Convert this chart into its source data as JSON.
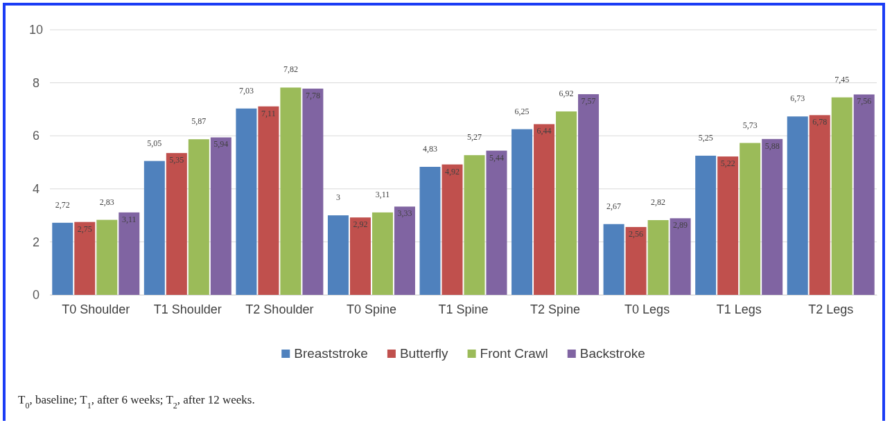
{
  "chart_data": {
    "type": "bar",
    "categories": [
      "T0 Shoulder",
      "T1 Shoulder",
      "T2 Shoulder",
      "T0 Spine",
      "T1 Spine",
      "T2 Spine",
      "T0 Legs",
      "T1 Legs",
      "T2 Legs"
    ],
    "series": [
      {
        "name": "Breaststroke",
        "color": "#4f81bd",
        "values": [
          2.72,
          5.05,
          7.03,
          3,
          4.83,
          6.25,
          2.67,
          5.25,
          6.73
        ],
        "value_labels": [
          "2,72",
          "5,05",
          "7,03",
          "3",
          "4,83",
          "6,25",
          "2,67",
          "5,25",
          "6,73"
        ]
      },
      {
        "name": "Butterfly",
        "color": "#c0504d",
        "values": [
          2.75,
          5.35,
          7.11,
          2.92,
          4.92,
          6.44,
          2.56,
          5.22,
          6.78
        ],
        "value_labels": [
          "2,75",
          "5,35",
          "7,11",
          "2,92",
          "4,92",
          "6,44",
          "2,56",
          "5,22",
          "6,78"
        ]
      },
      {
        "name": "Front Crawl",
        "color": "#9bbb59",
        "values": [
          2.83,
          5.87,
          7.82,
          3.11,
          5.27,
          6.92,
          2.82,
          5.73,
          7.45
        ],
        "value_labels": [
          "2,83",
          "5,87",
          "7,82",
          "3,11",
          "5,27",
          "6,92",
          "2,82",
          "5,73",
          "7,45"
        ]
      },
      {
        "name": "Backstroke",
        "color": "#8064a2",
        "values": [
          3.11,
          5.94,
          7.78,
          3.33,
          5.44,
          7.57,
          2.89,
          5.88,
          7.56
        ],
        "value_labels": [
          "3,11",
          "5,94",
          "7,78",
          "3,33",
          "5,44",
          "7,57",
          "2,89",
          "5,88",
          "7,56"
        ]
      }
    ],
    "ylim": [
      0,
      10
    ],
    "yticks": [
      0,
      2,
      4,
      6,
      8,
      10
    ],
    "grid": "y",
    "legend": "bottom",
    "annotations": [
      "T$_{0}$, baseline; T$_{1}$, after 6 weeks; T$_{2}$, after 12 weeks."
    ]
  }
}
